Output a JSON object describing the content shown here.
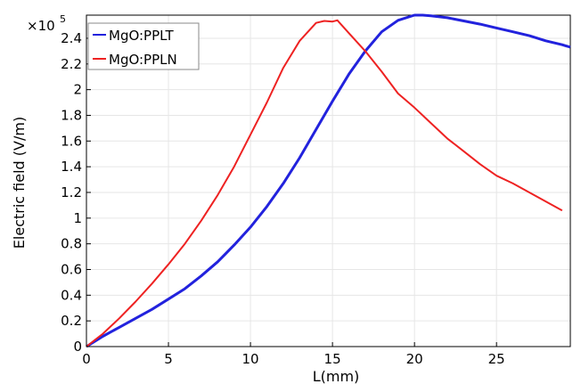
{
  "chart_data": {
    "type": "line",
    "xlabel": "L(mm)",
    "ylabel": "Electric field  (V/m)",
    "y_multiplier_label": "×10",
    "y_multiplier_exponent": "5",
    "xlim": [
      0,
      29.5
    ],
    "ylim": [
      0,
      2.58
    ],
    "grid": true,
    "legend_position": "top-left",
    "x_ticks": [
      0,
      5,
      10,
      15,
      20,
      25
    ],
    "y_ticks": [
      0,
      0.2,
      0.4,
      0.6,
      0.8,
      1,
      1.2,
      1.4,
      1.6,
      1.8,
      2,
      2.2,
      2.4
    ],
    "x_tick_labels": [
      "0",
      "5",
      "10",
      "15",
      "20",
      "25"
    ],
    "y_tick_labels": [
      "0",
      "0.2",
      "0.4",
      "0.6",
      "0.8",
      "1",
      "1.2",
      "1.4",
      "1.6",
      "1.8",
      "2",
      "2.2",
      "2.4"
    ],
    "series": [
      {
        "name": "MgO:PPLT",
        "color": "#2222dd",
        "x": [
          0,
          1,
          2,
          3,
          4,
          5,
          6,
          7,
          8,
          9,
          10,
          11,
          12,
          13,
          14,
          15,
          16,
          17,
          18,
          19,
          20,
          20.5,
          21,
          22,
          23,
          24,
          25,
          26,
          27,
          28,
          29,
          29.5
        ],
        "y": [
          0,
          0.08,
          0.15,
          0.22,
          0.29,
          0.37,
          0.45,
          0.55,
          0.66,
          0.79,
          0.93,
          1.09,
          1.27,
          1.47,
          1.69,
          1.91,
          2.12,
          2.3,
          2.45,
          2.54,
          2.58,
          2.58,
          2.575,
          2.56,
          2.535,
          2.51,
          2.48,
          2.45,
          2.42,
          2.38,
          2.35,
          2.33
        ]
      },
      {
        "name": "MgO:PPLN",
        "color": "#ee2222",
        "x": [
          0,
          1,
          2,
          3,
          4,
          5,
          6,
          7,
          8,
          9,
          10,
          11,
          12,
          13,
          14,
          14.5,
          15,
          15.3,
          16,
          17,
          18,
          19,
          20,
          21,
          22,
          23,
          24,
          25,
          26,
          27,
          28,
          29
        ],
        "y": [
          0,
          0.1,
          0.22,
          0.35,
          0.49,
          0.64,
          0.8,
          0.98,
          1.18,
          1.4,
          1.65,
          1.9,
          2.17,
          2.38,
          2.52,
          2.535,
          2.53,
          2.54,
          2.44,
          2.3,
          2.14,
          1.97,
          1.86,
          1.74,
          1.62,
          1.52,
          1.42,
          1.33,
          1.27,
          1.2,
          1.13,
          1.06
        ]
      }
    ]
  }
}
